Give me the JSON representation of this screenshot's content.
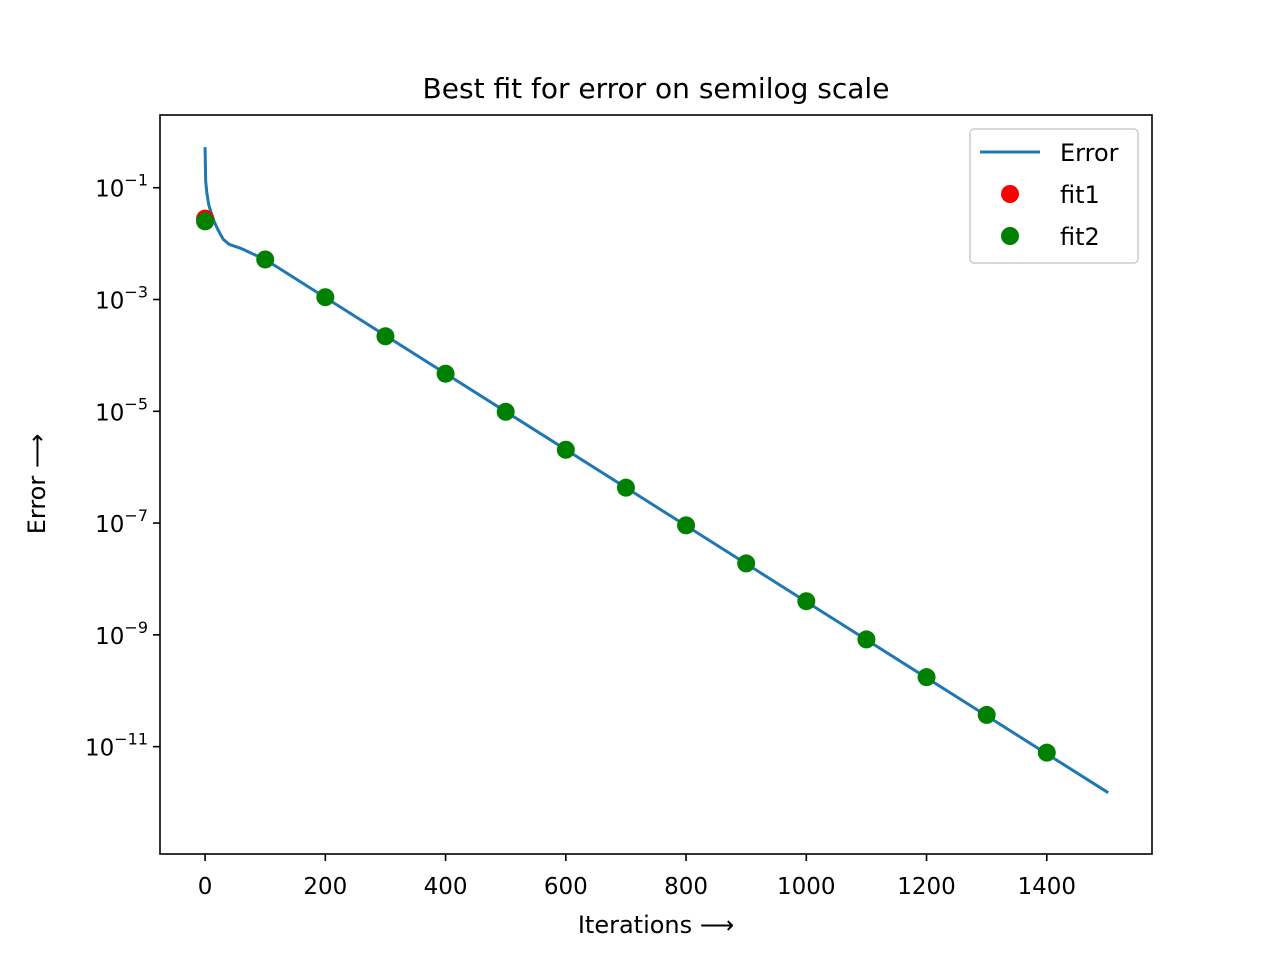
{
  "chart_data": {
    "type": "line",
    "title": "Best fit for error on semilog scale",
    "xlabel": "Iterations ⟶",
    "ylabel": "Error ⟶",
    "xlim": [
      -75,
      1575
    ],
    "ylim": [
      1.2e-13,
      2.0
    ],
    "yscale": "log",
    "grid": false,
    "legend": "top-right",
    "xticks": [
      0,
      200,
      400,
      600,
      800,
      1000,
      1200,
      1400
    ],
    "yticks": [
      {
        "value": 0.1,
        "base": "10",
        "exp": "−1"
      },
      {
        "value": 0.001,
        "base": "10",
        "exp": "−3"
      },
      {
        "value": 1e-05,
        "base": "10",
        "exp": "−5"
      },
      {
        "value": 1e-07,
        "base": "10",
        "exp": "−7"
      },
      {
        "value": 1e-09,
        "base": "10",
        "exp": "−9"
      },
      {
        "value": 1e-11,
        "base": "10",
        "exp": "−11"
      }
    ],
    "series": [
      {
        "name": "Error",
        "kind": "line",
        "color": "#1f77b4",
        "x": [
          0,
          1,
          3,
          6,
          10,
          15,
          20,
          25,
          30,
          40,
          50,
          60,
          70,
          80,
          100,
          1500
        ],
        "y": [
          0.5,
          0.13,
          0.08,
          0.05,
          0.036,
          0.025,
          0.019,
          0.015,
          0.012,
          0.0097,
          0.0089,
          0.0082,
          0.0073,
          0.0065,
          0.0052,
          1.55e-12
        ]
      },
      {
        "name": "fit1",
        "kind": "marker",
        "color": "#ff0000",
        "x": [
          0
        ],
        "y": [
          0.028
        ]
      },
      {
        "name": "fit2",
        "kind": "marker",
        "color": "#008000",
        "x": [
          0,
          100,
          200,
          300,
          400,
          500,
          600,
          700,
          800,
          900,
          1000,
          1100,
          1200,
          1300,
          1400
        ],
        "y": [
          0.025,
          0.0052,
          0.0011,
          0.00022,
          4.7e-05,
          9.8e-06,
          2.05e-06,
          4.3e-07,
          9.1e-08,
          1.9e-08,
          4e-09,
          8.3e-10,
          1.75e-10,
          3.7e-11,
          7.8e-12
        ]
      }
    ]
  }
}
